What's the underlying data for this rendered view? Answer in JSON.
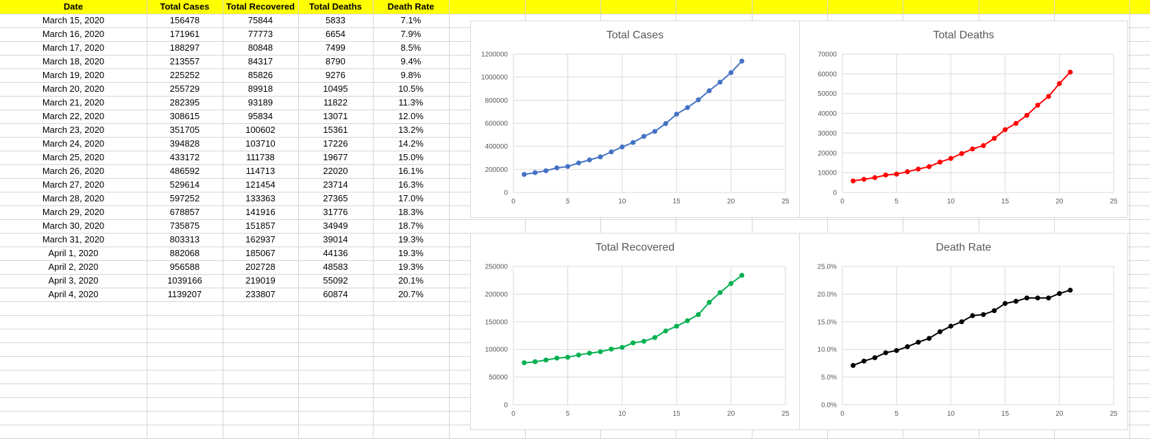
{
  "table": {
    "headers": [
      "Date",
      "Total Cases",
      "Total Recovered",
      "Total Deaths",
      "Death Rate"
    ],
    "rows": [
      [
        "March 15, 2020",
        "156478",
        "75844",
        "5833",
        "7.1%"
      ],
      [
        "March 16, 2020",
        "171961",
        "77773",
        "6654",
        "7.9%"
      ],
      [
        "March 17, 2020",
        "188297",
        "80848",
        "7499",
        "8.5%"
      ],
      [
        "March 18, 2020",
        "213557",
        "84317",
        "8790",
        "9.4%"
      ],
      [
        "March 19, 2020",
        "225252",
        "85826",
        "9276",
        "9.8%"
      ],
      [
        "March 20, 2020",
        "255729",
        "89918",
        "10495",
        "10.5%"
      ],
      [
        "March 21, 2020",
        "282395",
        "93189",
        "11822",
        "11.3%"
      ],
      [
        "March 22, 2020",
        "308615",
        "95834",
        "13071",
        "12.0%"
      ],
      [
        "March 23, 2020",
        "351705",
        "100602",
        "15361",
        "13.2%"
      ],
      [
        "March 24, 2020",
        "394828",
        "103710",
        "17226",
        "14.2%"
      ],
      [
        "March 25, 2020",
        "433172",
        "111738",
        "19677",
        "15.0%"
      ],
      [
        "March 26, 2020",
        "486592",
        "114713",
        "22020",
        "16.1%"
      ],
      [
        "March 27, 2020",
        "529614",
        "121454",
        "23714",
        "16.3%"
      ],
      [
        "March 28, 2020",
        "597252",
        "133363",
        "27365",
        "17.0%"
      ],
      [
        "March 29, 2020",
        "678857",
        "141916",
        "31776",
        "18.3%"
      ],
      [
        "March 30, 2020",
        "735875",
        "151857",
        "34949",
        "18.7%"
      ],
      [
        "March 31, 2020",
        "803313",
        "162937",
        "39014",
        "19.3%"
      ],
      [
        "April 1, 2020",
        "882068",
        "185067",
        "44136",
        "19.3%"
      ],
      [
        "April 2, 2020",
        "956588",
        "202728",
        "48583",
        "19.3%"
      ],
      [
        "April 3, 2020",
        "1039166",
        "219019",
        "55092",
        "20.1%"
      ],
      [
        "April 4, 2020",
        "1139207",
        "233807",
        "60874",
        "20.7%"
      ]
    ]
  },
  "colors": {
    "header_band": "#ffff00",
    "gridline": "#d4d4d4",
    "cases": "#4472c4",
    "deaths": "#ff0000",
    "recovered": "#00b050",
    "rate": "#000000"
  },
  "chart_data": [
    {
      "id": "total-cases",
      "type": "scatter",
      "title": "Total Cases",
      "color": "#4472c4",
      "x": [
        1,
        2,
        3,
        4,
        5,
        6,
        7,
        8,
        9,
        10,
        11,
        12,
        13,
        14,
        15,
        16,
        17,
        18,
        19,
        20,
        21
      ],
      "y": [
        156478,
        171961,
        188297,
        213557,
        225252,
        255729,
        282395,
        308615,
        351705,
        394828,
        433172,
        486592,
        529614,
        597252,
        678857,
        735875,
        803313,
        882068,
        956588,
        1039166,
        1139207
      ],
      "xlim": [
        0,
        25
      ],
      "xticks": [
        0,
        5,
        10,
        15,
        20,
        25
      ],
      "ylim": [
        0,
        1200000
      ],
      "yticks": [
        0,
        200000,
        400000,
        600000,
        800000,
        1000000,
        1200000
      ],
      "ytick_labels": [
        "0",
        "200000",
        "400000",
        "600000",
        "800000",
        "1000000",
        "1200000"
      ],
      "grid": true,
      "legend": "none"
    },
    {
      "id": "total-deaths",
      "type": "scatter",
      "title": "Total Deaths",
      "color": "#ff0000",
      "x": [
        1,
        2,
        3,
        4,
        5,
        6,
        7,
        8,
        9,
        10,
        11,
        12,
        13,
        14,
        15,
        16,
        17,
        18,
        19,
        20,
        21
      ],
      "y": [
        5833,
        6654,
        7499,
        8790,
        9276,
        10495,
        11822,
        13071,
        15361,
        17226,
        19677,
        22020,
        23714,
        27365,
        31776,
        34949,
        39014,
        44136,
        48583,
        55092,
        60874
      ],
      "xlim": [
        0,
        25
      ],
      "xticks": [
        0,
        5,
        10,
        15,
        20,
        25
      ],
      "ylim": [
        0,
        70000
      ],
      "yticks": [
        0,
        10000,
        20000,
        30000,
        40000,
        50000,
        60000,
        70000
      ],
      "ytick_labels": [
        "0",
        "10000",
        "20000",
        "30000",
        "40000",
        "50000",
        "60000",
        "70000"
      ],
      "grid": true,
      "legend": "none"
    },
    {
      "id": "total-recovered",
      "type": "scatter",
      "title": "Total Recovered",
      "color": "#00b050",
      "x": [
        1,
        2,
        3,
        4,
        5,
        6,
        7,
        8,
        9,
        10,
        11,
        12,
        13,
        14,
        15,
        16,
        17,
        18,
        19,
        20,
        21
      ],
      "y": [
        75844,
        77773,
        80848,
        84317,
        85826,
        89918,
        93189,
        95834,
        100602,
        103710,
        111738,
        114713,
        121454,
        133363,
        141916,
        151857,
        162937,
        185067,
        202728,
        219019,
        233807
      ],
      "xlim": [
        0,
        25
      ],
      "xticks": [
        0,
        5,
        10,
        15,
        20,
        25
      ],
      "ylim": [
        0,
        250000
      ],
      "yticks": [
        0,
        50000,
        100000,
        150000,
        200000,
        250000
      ],
      "ytick_labels": [
        "0",
        "50000",
        "100000",
        "150000",
        "200000",
        "250000"
      ],
      "grid": true,
      "legend": "none"
    },
    {
      "id": "death-rate",
      "type": "scatter",
      "title": "Death Rate",
      "color": "#000000",
      "x": [
        1,
        2,
        3,
        4,
        5,
        6,
        7,
        8,
        9,
        10,
        11,
        12,
        13,
        14,
        15,
        16,
        17,
        18,
        19,
        20,
        21
      ],
      "y": [
        7.1,
        7.9,
        8.5,
        9.4,
        9.8,
        10.5,
        11.3,
        12.0,
        13.2,
        14.2,
        15.0,
        16.1,
        16.3,
        17.0,
        18.3,
        18.7,
        19.3,
        19.3,
        19.3,
        20.1,
        20.7
      ],
      "xlim": [
        0,
        25
      ],
      "xticks": [
        0,
        5,
        10,
        15,
        20,
        25
      ],
      "ylim": [
        0,
        25
      ],
      "yticks": [
        0,
        5,
        10,
        15,
        20,
        25
      ],
      "ytick_labels": [
        "0.0%",
        "5.0%",
        "10.0%",
        "15.0%",
        "20.0%",
        "25.0%"
      ],
      "grid": true,
      "legend": "none"
    }
  ]
}
